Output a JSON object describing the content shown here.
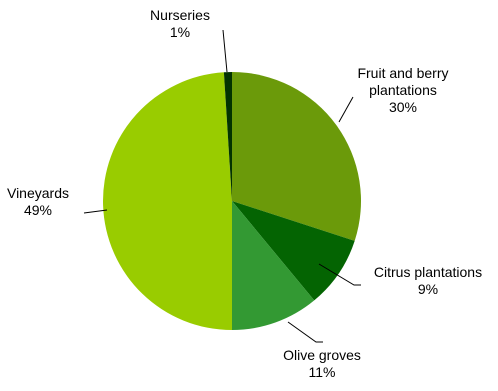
{
  "chart_data": {
    "type": "pie",
    "title": "",
    "slices": [
      {
        "name": "Fruit and berry plantations",
        "label_lines": [
          "Fruit and berry",
          "plantations"
        ],
        "value": 30,
        "value_label": "30%",
        "color": "#6b9a0a"
      },
      {
        "name": "Citrus plantations",
        "label_lines": [
          "Citrus plantations"
        ],
        "value": 9,
        "value_label": "9%",
        "color": "#046402"
      },
      {
        "name": "Olive groves",
        "label_lines": [
          "Olive groves"
        ],
        "value": 11,
        "value_label": "11%",
        "color": "#339933"
      },
      {
        "name": "Vineyards",
        "label_lines": [
          "Vineyards"
        ],
        "value": 49,
        "value_label": "49%",
        "color": "#99cc00"
      },
      {
        "name": "Nurseries",
        "label_lines": [
          "Nurseries"
        ],
        "value": 1,
        "value_label": "1%",
        "color": "#033300"
      }
    ]
  }
}
